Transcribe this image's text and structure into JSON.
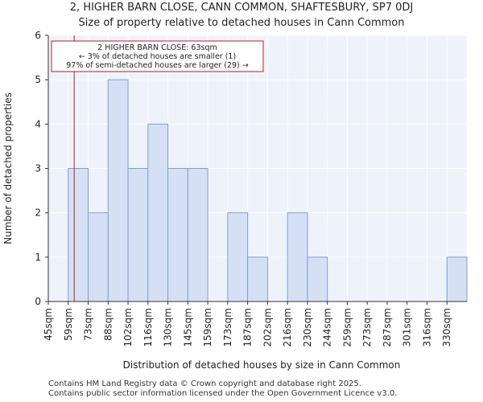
{
  "chart_data": {
    "type": "bar",
    "title": "2, HIGHER BARN CLOSE, CANN COMMON, SHAFTESBURY, SP7 0DJ",
    "subtitle": "Size of property relative to detached houses in Cann Common",
    "xlabel": "Distribution of detached houses by size in Cann Common",
    "ylabel": "Number of detached properties",
    "ylim": [
      0,
      6
    ],
    "yticks": [
      "0",
      "1",
      "2",
      "3",
      "4",
      "5",
      "6"
    ],
    "categories": [
      "45sqm",
      "59sqm",
      "73sqm",
      "88sqm",
      "102sqm",
      "116sqm",
      "130sqm",
      "145sqm",
      "159sqm",
      "173sqm",
      "187sqm",
      "202sqm",
      "216sqm",
      "230sqm",
      "244sqm",
      "259sqm",
      "273sqm",
      "287sqm",
      "301sqm",
      "316sqm",
      "330sqm"
    ],
    "values": [
      0,
      3,
      2,
      5,
      3,
      4,
      3,
      3,
      0,
      2,
      1,
      0,
      2,
      1,
      0,
      0,
      0,
      0,
      0,
      0,
      1
    ],
    "marker": {
      "value_sqm": 63,
      "bin_position": 1.3
    },
    "annotation": {
      "line1": "2 HIGHER BARN CLOSE: 63sqm",
      "line2": "← 3% of detached houses are smaller (1)",
      "line3": "97% of semi-detached houses are larger (29) →"
    },
    "colors": {
      "bar_fill": "#d6e0f5",
      "bar_stroke": "#7f9fd0",
      "plot_bg": "#eef2fb",
      "grid": "#ffffff",
      "marker": "#b22222",
      "annotation_border": "#b22222"
    }
  },
  "footer": {
    "line1": "Contains HM Land Registry data © Crown copyright and database right 2025.",
    "line2": "Contains public sector information licensed under the Open Government Licence v3.0."
  }
}
